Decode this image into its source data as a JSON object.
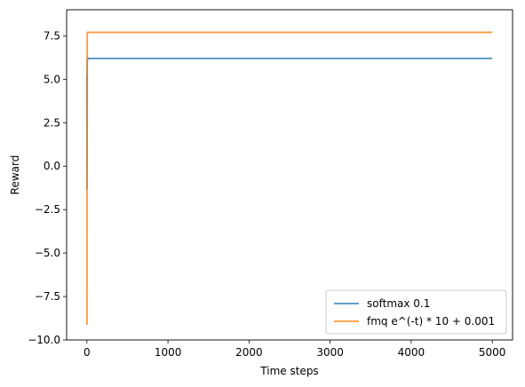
{
  "chart_data": {
    "type": "line",
    "title": "",
    "xlabel": "Time steps",
    "ylabel": "Reward",
    "xlim": [
      -250,
      5250
    ],
    "ylim": [
      -10,
      9
    ],
    "xticks": [
      0,
      1000,
      2000,
      3000,
      4000,
      5000
    ],
    "xtick_labels": [
      "0",
      "1000",
      "2000",
      "3000",
      "4000",
      "5000"
    ],
    "yticks": [
      -10,
      -7.5,
      -5,
      -2.5,
      0,
      2.5,
      5,
      7.5
    ],
    "ytick_labels": [
      "−10.0",
      "−7.5",
      "−5.0",
      "−2.5",
      "0.0",
      "2.5",
      "5.0",
      "7.5"
    ],
    "grid": false,
    "legend_position": "lower-right",
    "series": [
      {
        "name": "softmax 0.1",
        "color": "#1f77b4",
        "x": [
          0,
          1,
          2,
          3,
          4,
          5,
          6,
          8,
          10,
          15,
          20,
          50,
          100,
          500,
          1000,
          2000,
          3000,
          4000,
          5000
        ],
        "y": [
          5.2,
          -1.3,
          4.5,
          0.3,
          5.8,
          6.0,
          6.1,
          6.15,
          6.2,
          6.2,
          6.2,
          6.2,
          6.2,
          6.2,
          6.2,
          6.2,
          6.2,
          6.2,
          6.2
        ]
      },
      {
        "name": "fmq e^(-t) * 10 + 0.001",
        "color": "#ff7f0e",
        "x": [
          0,
          1,
          2,
          3,
          4,
          5,
          6,
          8,
          10,
          15,
          20,
          50,
          100,
          500,
          1000,
          2000,
          3000,
          4000,
          5000
        ],
        "y": [
          -7.4,
          -9.1,
          -3.0,
          5.5,
          7.4,
          7.7,
          7.7,
          7.7,
          7.7,
          7.7,
          7.7,
          7.7,
          7.7,
          7.7,
          7.7,
          7.7,
          7.7,
          7.7,
          7.7
        ]
      }
    ]
  }
}
